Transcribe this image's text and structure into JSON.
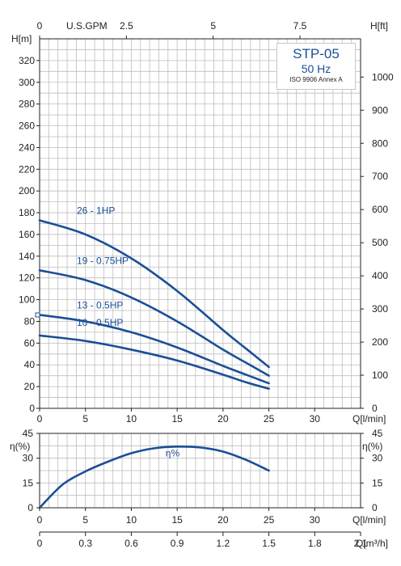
{
  "chart_data": [
    {
      "type": "line",
      "title": "",
      "xlabel": "Q[l/min]",
      "ylabel": "H[m]",
      "ylabel_right": "H[ft]",
      "xlabel_top": "U.S.GPM",
      "x_ticks": [
        "0",
        "5",
        "10",
        "15",
        "20",
        "25",
        "30"
      ],
      "y_ticks": [
        "0",
        "20",
        "40",
        "60",
        "80",
        "100",
        "120",
        "140",
        "160",
        "180",
        "200",
        "220",
        "240",
        "260",
        "280",
        "300",
        "320"
      ],
      "y_right_ticks": [
        "0",
        "100",
        "200",
        "300",
        "400",
        "500",
        "600",
        "700",
        "800",
        "900",
        "1000"
      ],
      "x_top_ticks": [
        "0",
        "2.5",
        "5",
        "7.5"
      ],
      "xlim": [
        0,
        35
      ],
      "ylim": [
        0,
        340
      ],
      "grid": true,
      "series": [
        {
          "name": "26 - 1HP",
          "x": [
            0,
            5,
            10,
            15,
            20,
            22.5,
            25
          ],
          "y": [
            173,
            160,
            138,
            108,
            72,
            55,
            38
          ]
        },
        {
          "name": "19 - 0.75HP",
          "x": [
            0,
            5,
            10,
            15,
            20,
            22.5,
            25
          ],
          "y": [
            127,
            118,
            102,
            80,
            54,
            42,
            30
          ]
        },
        {
          "name": "13 - 0.5HP",
          "x": [
            0,
            5,
            10,
            15,
            20,
            22.5,
            25
          ],
          "y": [
            86,
            80,
            70,
            56,
            39,
            31,
            23
          ]
        },
        {
          "name": "10 - 0.5HP",
          "x": [
            0,
            5,
            10,
            15,
            20,
            22.5,
            25
          ],
          "y": [
            67,
            62,
            54,
            44,
            31,
            24,
            18
          ]
        }
      ],
      "model": {
        "name": "STP-05",
        "frequency": "50 Hz",
        "standard": "ISO 9906 Annex A"
      }
    },
    {
      "type": "line",
      "title": "",
      "xlabel": "Q[l/min]",
      "ylabel": "η(%)",
      "ylabel_right": "η(%)",
      "x_ticks": [
        "0",
        "5",
        "10",
        "15",
        "20",
        "25",
        "30"
      ],
      "y_ticks": [
        "0",
        "15",
        "30",
        "45"
      ],
      "y_right_ticks": [
        "0",
        "15",
        "30",
        "45"
      ],
      "xlim": [
        0,
        35
      ],
      "ylim": [
        0,
        45
      ],
      "grid": true,
      "series": [
        {
          "name": "η%",
          "x": [
            0,
            2.5,
            5,
            7.5,
            10,
            12.5,
            15,
            17.5,
            20,
            22.5,
            25
          ],
          "y": [
            0,
            14,
            22,
            28,
            33,
            36,
            37,
            36.5,
            34,
            29,
            22.5
          ]
        }
      ]
    },
    {
      "type": "axis",
      "xlabel": "Q[m³/h]",
      "x_ticks": [
        "0",
        "0.3",
        "0.6",
        "0.9",
        "1.2",
        "1.5",
        "1.8",
        "2.1"
      ],
      "xlim": [
        0,
        2.1
      ]
    }
  ]
}
